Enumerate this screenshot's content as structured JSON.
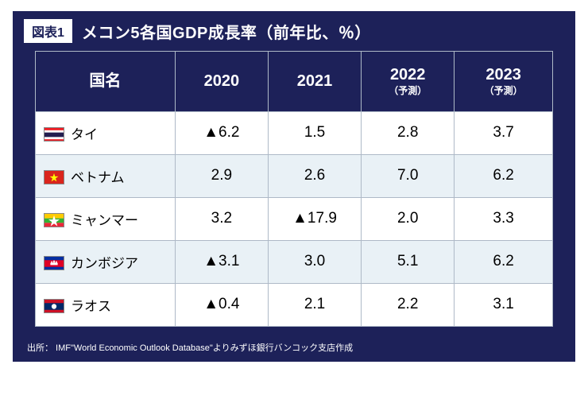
{
  "badge": "図表1",
  "title": "メコン5各国GDP成長率（前年比、％）",
  "columns": [
    {
      "label": "国名",
      "sub": ""
    },
    {
      "label": "2020",
      "sub": ""
    },
    {
      "label": "2021",
      "sub": ""
    },
    {
      "label": "2022",
      "sub": "（予測）"
    },
    {
      "label": "2023",
      "sub": "（予測）"
    }
  ],
  "rows": [
    {
      "country": "タイ",
      "flag": "thailand",
      "values": [
        "▲6.2",
        "1.5",
        "2.8",
        "3.7"
      ]
    },
    {
      "country": "ベトナム",
      "flag": "vietnam",
      "values": [
        "2.9",
        "2.6",
        "7.0",
        "6.2"
      ]
    },
    {
      "country": "ミャンマー",
      "flag": "myanmar",
      "values": [
        "3.2",
        "▲17.9",
        "2.0",
        "3.3"
      ]
    },
    {
      "country": "カンボジア",
      "flag": "cambodia",
      "values": [
        "▲3.1",
        "3.0",
        "5.1",
        "6.2"
      ]
    },
    {
      "country": "ラオス",
      "flag": "laos",
      "values": [
        "▲0.4",
        "2.1",
        "2.2",
        "3.1"
      ]
    }
  ],
  "source": "出所： IMF\"World Economic Outlook Database\"よりみずほ銀行バンコック支店作成",
  "style": {
    "col_widths_pct": [
      27,
      18,
      18,
      18,
      19
    ],
    "header_bg": "#1d2159",
    "header_fg": "#ffffff",
    "row_odd_bg": "#ffffff",
    "row_even_bg": "#e9f1f6",
    "border_color": "#aeb9c7",
    "badge_bg": "#ffffff",
    "badge_fg": "#1d2159",
    "title_fontsize": 20,
    "header_fontsize": 20,
    "header_sub_fontsize": 12,
    "cell_fontsize": 19,
    "country_fontsize": 17,
    "source_fontsize": 11
  },
  "flags": {
    "thailand": "<svg xmlns='http://www.w3.org/2000/svg' viewBox='0 0 26 18'><rect width='26' height='18' fill='%23ed1c24'/><rect y='3' width='26' height='12' fill='%23ffffff'/><rect y='6' width='26' height='6' fill='%23241d4f'/></svg>",
    "vietnam": "<svg xmlns='http://www.w3.org/2000/svg' viewBox='0 0 26 18'><rect width='26' height='18' fill='%23da251d'/><polygon points='13,3 14.4,7.3 18.9,7.3 15.2,9.9 16.6,14.2 13,11.6 9.4,14.2 10.8,9.9 7.1,7.3 11.6,7.3' fill='%23ffff00'/></svg>",
    "myanmar": "<svg xmlns='http://www.w3.org/2000/svg' viewBox='0 0 26 18'><rect width='26' height='6' fill='%23fecb00'/><rect y='6' width='26' height='6' fill='%2334b233'/><rect y='12' width='26' height='6' fill='%23ea2839'/><polygon points='13,2 14.8,7.5 20.6,7.5 15.9,10.9 17.7,16.4 13,13 8.3,16.4 10.1,10.9 5.4,7.5 11.2,7.5' fill='%23ffffff'/></svg>",
    "cambodia": "<svg xmlns='http://www.w3.org/2000/svg' viewBox='0 0 26 18'><rect width='26' height='18' fill='%23032ea1'/><rect y='4.5' width='26' height='9' fill='%23e00025'/><rect x='8' y='8' width='10' height='3' fill='%23ffffff'/><rect x='9' y='6' width='2' height='2' fill='%23ffffff'/><rect x='12' y='5' width='2' height='3' fill='%23ffffff'/><rect x='15' y='6' width='2' height='2' fill='%23ffffff'/></svg>",
    "laos": "<svg xmlns='http://www.w3.org/2000/svg' viewBox='0 0 26 18'><rect width='26' height='18' fill='%23ce1126'/><rect y='4.5' width='26' height='9' fill='%23002868'/><circle cx='13' cy='9' r='3.4' fill='%23ffffff'/></svg>"
  }
}
